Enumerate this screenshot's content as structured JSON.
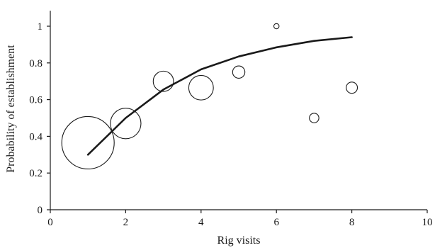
{
  "chart_data": {
    "type": "scatter",
    "title": "",
    "xlabel": "Rig visits",
    "ylabel": "Probability of establishment",
    "xlim": [
      0,
      10
    ],
    "ylim": [
      0,
      1.1
    ],
    "x_ticks": [
      0,
      2,
      4,
      6,
      8,
      10
    ],
    "y_ticks": [
      0,
      0.2,
      0.4,
      0.6,
      0.8,
      1
    ],
    "x_tick_labels": [
      "0",
      "2",
      "4",
      "6",
      "8",
      "10"
    ],
    "y_tick_labels": [
      "0",
      "0.2",
      "0.4",
      "0.6",
      "0.8",
      "1"
    ],
    "grid": false,
    "series": [
      {
        "kind": "bubble",
        "points": [
          {
            "x": 1,
            "y": 0.365,
            "size": 1.0
          },
          {
            "x": 2,
            "y": 0.47,
            "size": 0.34
          },
          {
            "x": 3,
            "y": 0.7,
            "size": 0.15
          },
          {
            "x": 4,
            "y": 0.665,
            "size": 0.22
          },
          {
            "x": 5,
            "y": 0.75,
            "size": 0.055
          },
          {
            "x": 6,
            "y": 1.0,
            "size": 0.01
          },
          {
            "x": 7,
            "y": 0.5,
            "size": 0.033
          },
          {
            "x": 8,
            "y": 0.665,
            "size": 0.046
          }
        ]
      },
      {
        "kind": "fitted-line",
        "x": [
          1,
          2,
          3,
          4,
          5,
          6,
          7,
          8
        ],
        "y": [
          0.3,
          0.5,
          0.655,
          0.765,
          0.835,
          0.885,
          0.92,
          0.94
        ]
      }
    ]
  }
}
